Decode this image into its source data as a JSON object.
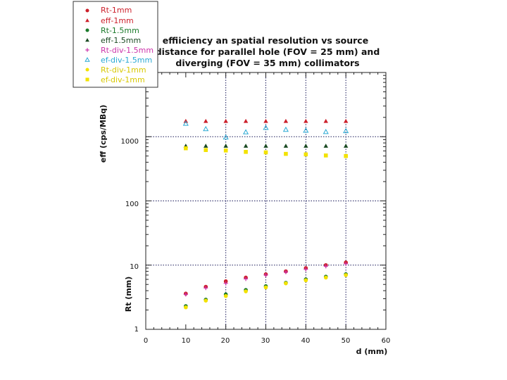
{
  "chart_data": {
    "type": "scatter",
    "title_lines": [
      "effiiciency an spatial resolution vs source",
      "distance for parallel hole (FOV = 25 mm) and",
      "diverging (FOV = 35 mm) collimators"
    ],
    "xlabel": "d (mm)",
    "ylabel_upper": "eff (cps/MBq)",
    "ylabel_lower": "Rt (mm)",
    "xlim": [
      0,
      60
    ],
    "ylim": [
      1,
      10000
    ],
    "y_scale": "log",
    "x_ticks": [
      "0",
      "10",
      "20",
      "30",
      "40",
      "50",
      "60"
    ],
    "y_ticks": [
      "1",
      "10",
      "100",
      "1000"
    ],
    "grid": "dotted at x = 20, 30, 40, 50 and y = 10, 100, 1000",
    "legend_position": "top-left",
    "x": [
      10,
      15,
      20,
      25,
      30,
      35,
      40,
      45,
      50
    ],
    "series": [
      {
        "name": "Rt-1mm",
        "marker": "circle",
        "color": "#cc1f2a",
        "values": [
          3.6,
          4.6,
          5.6,
          6.4,
          7.2,
          8.0,
          9.0,
          10.0,
          11.0
        ]
      },
      {
        "name": "eff-1mm",
        "marker": "triangle",
        "color": "#cc1f2a",
        "values": [
          1750,
          1750,
          1750,
          1750,
          1750,
          1750,
          1750,
          1750,
          1750
        ]
      },
      {
        "name": "Rt-1.5mm",
        "marker": "circle",
        "color": "#1a7a2a",
        "values": [
          2.3,
          2.9,
          3.5,
          4.1,
          4.7,
          5.3,
          6.0,
          6.6,
          7.2
        ]
      },
      {
        "name": "eff-1.5mm",
        "marker": "triangle",
        "color": "#1a4a22",
        "values": [
          720,
          720,
          720,
          720,
          720,
          720,
          720,
          720,
          720
        ]
      },
      {
        "name": "Rt-div-1.5mm",
        "marker": "plus",
        "color": "#cc33aa",
        "values": [
          3.5,
          4.4,
          5.2,
          6.1,
          7.0,
          7.8,
          8.6,
          9.6,
          10.5
        ]
      },
      {
        "name": "ef-div-1.5mm",
        "marker": "triangle-open",
        "color": "#2aa9d4",
        "values": [
          1600,
          1320,
          980,
          1180,
          1380,
          1290,
          1250,
          1190,
          1230
        ]
      },
      {
        "name": "Rt-div-1mm",
        "marker": "circle",
        "color": "#f2e200",
        "values": [
          2.2,
          2.8,
          3.3,
          3.9,
          4.5,
          5.2,
          5.8,
          6.4,
          7.0
        ]
      },
      {
        "name": "ef-div-1mm",
        "marker": "square",
        "color": "#f2e200",
        "values": [
          660,
          620,
          610,
          580,
          570,
          540,
          530,
          510,
          500
        ]
      }
    ]
  }
}
